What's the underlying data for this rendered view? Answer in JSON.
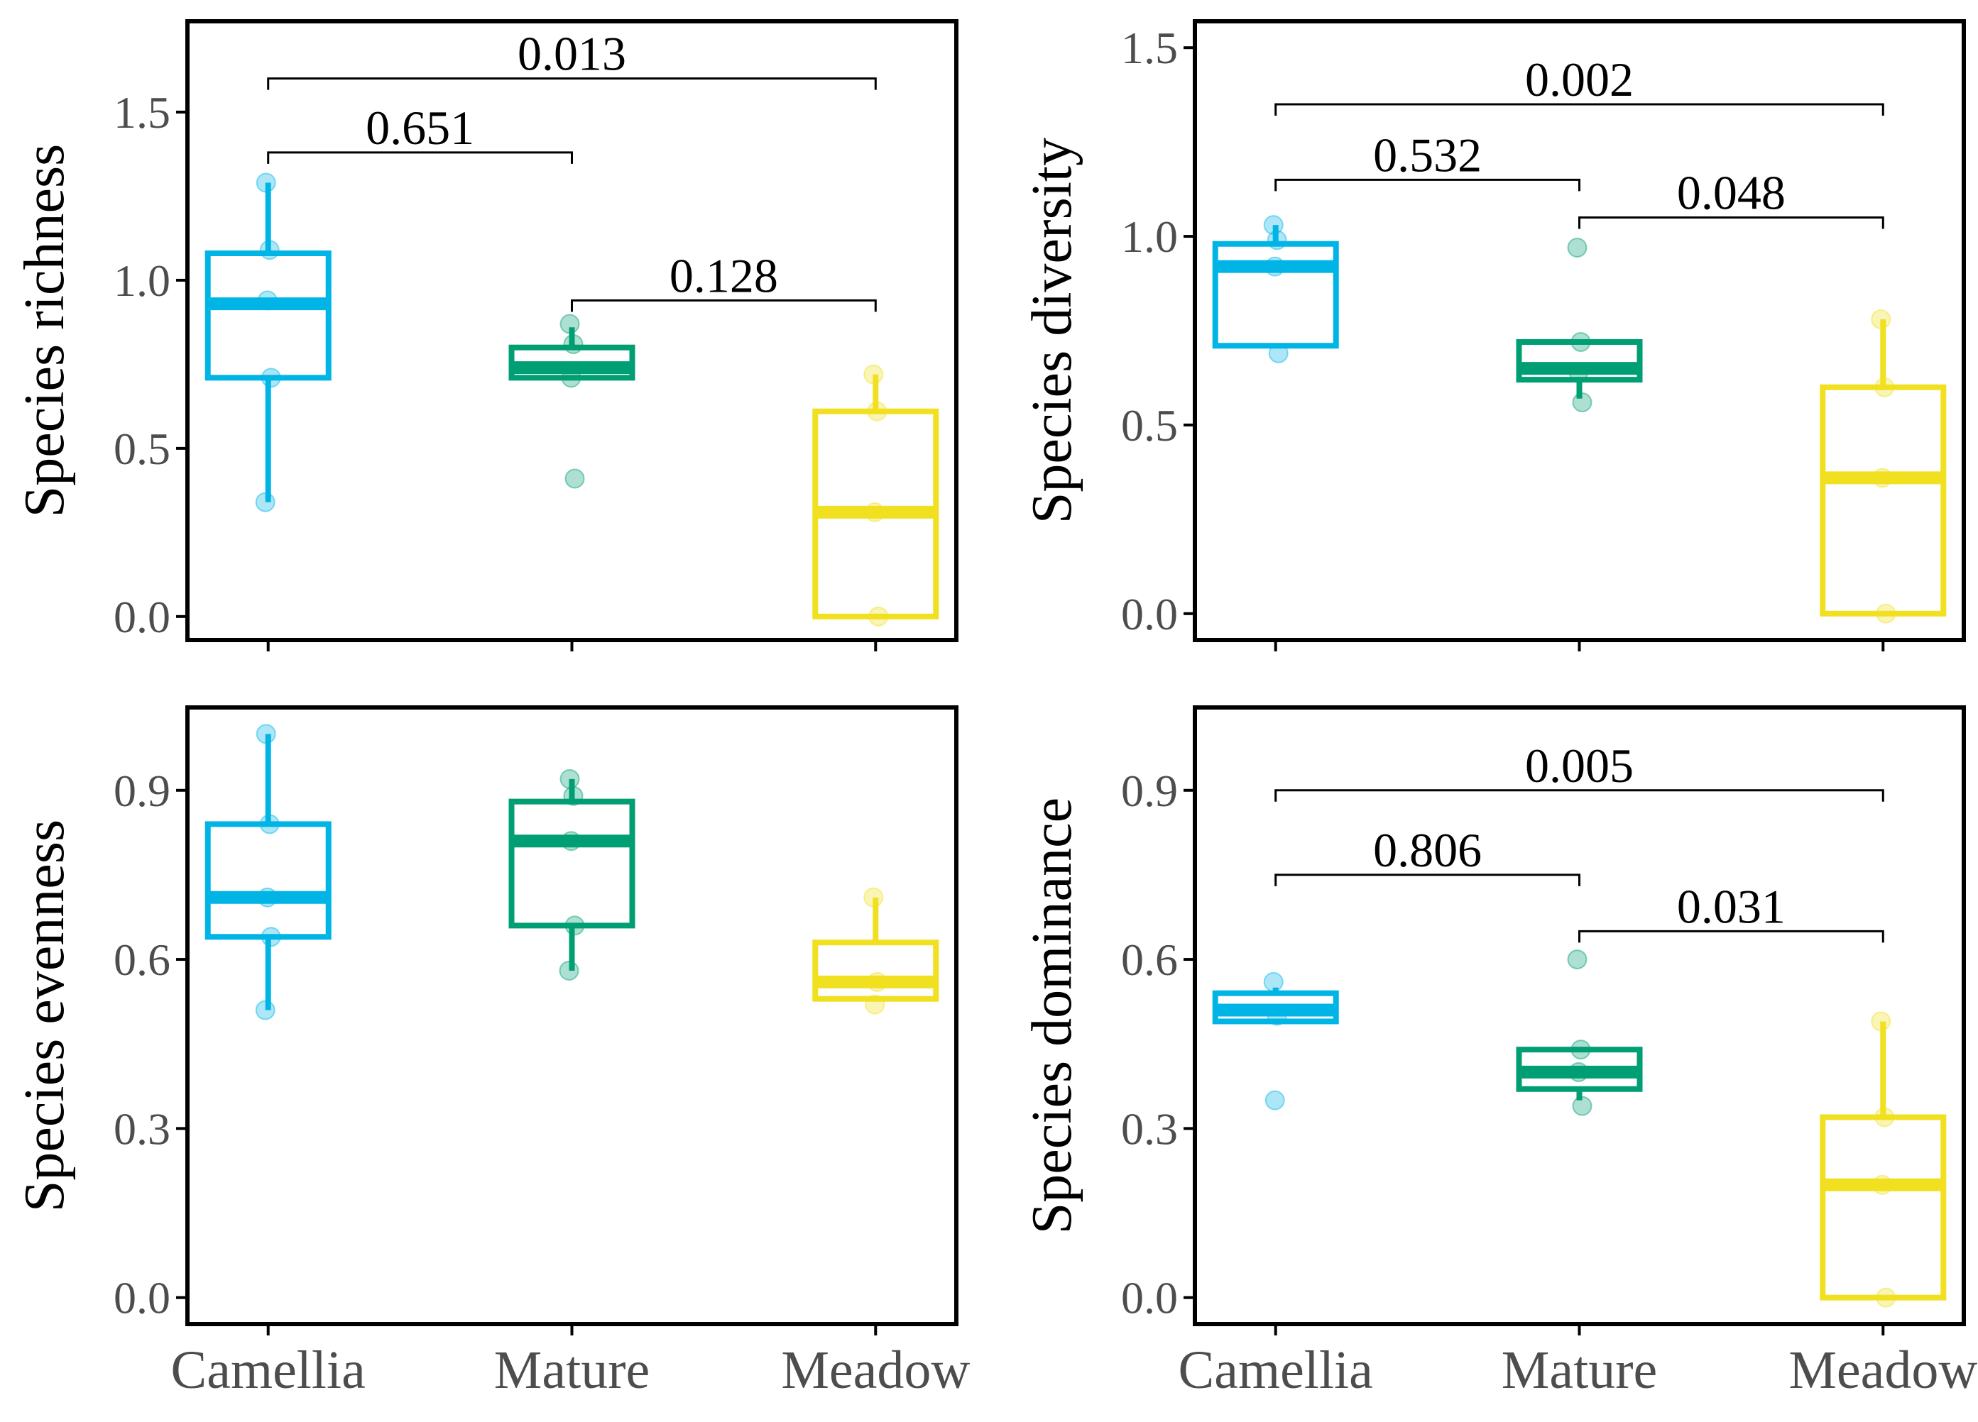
{
  "colors": {
    "Camellia": "#00b4e6",
    "Mature": "#009e73",
    "Meadow": "#f0e020",
    "axis": "#000000",
    "tick_text": "#4d4d4d"
  },
  "chart_data": [
    {
      "type": "box",
      "ylabel": "Species richness",
      "categories": [
        "Camellia",
        "Mature",
        "Meadow"
      ],
      "ylim": [
        -0.07,
        1.77
      ],
      "yticks": [
        0.0,
        0.5,
        1.0,
        1.5
      ],
      "ytick_labels": [
        "0.0",
        "0.5",
        "1.0",
        "1.5"
      ],
      "show_xtick_labels": false,
      "boxes": [
        {
          "group": "Camellia",
          "whisker_low": 0.34,
          "q1": 0.71,
          "median": 0.93,
          "q3": 1.08,
          "whisker_high": 1.29
        },
        {
          "group": "Mature",
          "whisker_low": 0.71,
          "q1": 0.71,
          "median": 0.74,
          "q3": 0.8,
          "whisker_high": 0.86
        },
        {
          "group": "Meadow",
          "whisker_low": 0.0,
          "q1": 0.0,
          "median": 0.31,
          "q3": 0.61,
          "whisker_high": 0.72
        }
      ],
      "points": [
        {
          "group": "Camellia",
          "values": [
            1.29,
            1.09,
            0.94,
            0.71,
            0.34
          ]
        },
        {
          "group": "Mature",
          "values": [
            0.87,
            0.81,
            0.71,
            0.41
          ]
        },
        {
          "group": "Meadow",
          "values": [
            0.72,
            0.61,
            0.31,
            0.0
          ]
        }
      ],
      "comparisons": [
        {
          "from": "Camellia",
          "to": "Meadow",
          "label": "0.013",
          "y": 1.6
        },
        {
          "from": "Camellia",
          "to": "Mature",
          "label": "0.651",
          "y": 1.38
        },
        {
          "from": "Mature",
          "to": "Meadow",
          "label": "0.128",
          "y": 0.94
        }
      ]
    },
    {
      "type": "box",
      "ylabel": "Species diversity",
      "categories": [
        "Camellia",
        "Mature",
        "Meadow"
      ],
      "ylim": [
        -0.07,
        1.57
      ],
      "yticks": [
        0.0,
        0.5,
        1.0,
        1.5
      ],
      "ytick_labels": [
        "0.0",
        "0.5",
        "1.0",
        "1.5"
      ],
      "show_xtick_labels": false,
      "boxes": [
        {
          "group": "Camellia",
          "whisker_low": 0.71,
          "q1": 0.71,
          "median": 0.92,
          "q3": 0.98,
          "whisker_high": 1.03
        },
        {
          "group": "Mature",
          "whisker_low": 0.57,
          "q1": 0.62,
          "median": 0.65,
          "q3": 0.72,
          "whisker_high": 0.72
        },
        {
          "group": "Meadow",
          "whisker_low": 0.0,
          "q1": 0.0,
          "median": 0.36,
          "q3": 0.6,
          "whisker_high": 0.78
        }
      ],
      "points": [
        {
          "group": "Camellia",
          "values": [
            1.03,
            0.99,
            0.92,
            0.69
          ]
        },
        {
          "group": "Mature",
          "values": [
            0.97,
            0.72,
            0.64,
            0.56
          ]
        },
        {
          "group": "Meadow",
          "values": [
            0.78,
            0.6,
            0.36,
            0.0
          ]
        }
      ],
      "comparisons": [
        {
          "from": "Camellia",
          "to": "Meadow",
          "label": "0.002",
          "y": 1.35
        },
        {
          "from": "Camellia",
          "to": "Mature",
          "label": "0.532",
          "y": 1.15
        },
        {
          "from": "Mature",
          "to": "Meadow",
          "label": "0.048",
          "y": 1.05
        }
      ]
    },
    {
      "type": "box",
      "ylabel": "Species evenness",
      "categories": [
        "Camellia",
        "Mature",
        "Meadow"
      ],
      "ylim": [
        -0.047,
        1.047
      ],
      "yticks": [
        0.0,
        0.3,
        0.6,
        0.9
      ],
      "ytick_labels": [
        "0.0",
        "0.3",
        "0.6",
        "0.9"
      ],
      "show_xtick_labels": true,
      "boxes": [
        {
          "group": "Camellia",
          "whisker_low": 0.51,
          "q1": 0.64,
          "median": 0.71,
          "q3": 0.84,
          "whisker_high": 1.0
        },
        {
          "group": "Mature",
          "whisker_low": 0.58,
          "q1": 0.66,
          "median": 0.81,
          "q3": 0.88,
          "whisker_high": 0.92
        },
        {
          "group": "Meadow",
          "whisker_low": 0.53,
          "q1": 0.53,
          "median": 0.56,
          "q3": 0.63,
          "whisker_high": 0.71
        }
      ],
      "points": [
        {
          "group": "Camellia",
          "values": [
            1.0,
            0.84,
            0.71,
            0.64,
            0.51
          ]
        },
        {
          "group": "Mature",
          "values": [
            0.92,
            0.89,
            0.81,
            0.66,
            0.58
          ]
        },
        {
          "group": "Meadow",
          "values": [
            0.71,
            0.56,
            0.52
          ]
        }
      ],
      "comparisons": []
    },
    {
      "type": "box",
      "ylabel": "Species dominance",
      "categories": [
        "Camellia",
        "Mature",
        "Meadow"
      ],
      "ylim": [
        -0.047,
        1.047
      ],
      "yticks": [
        0.0,
        0.3,
        0.6,
        0.9
      ],
      "ytick_labels": [
        "0.0",
        "0.3",
        "0.6",
        "0.9"
      ],
      "show_xtick_labels": true,
      "boxes": [
        {
          "group": "Camellia",
          "whisker_low": 0.49,
          "q1": 0.49,
          "median": 0.51,
          "q3": 0.54,
          "whisker_high": 0.55
        },
        {
          "group": "Mature",
          "whisker_low": 0.35,
          "q1": 0.37,
          "median": 0.4,
          "q3": 0.44,
          "whisker_high": 0.44
        },
        {
          "group": "Meadow",
          "whisker_low": 0.0,
          "q1": 0.0,
          "median": 0.2,
          "q3": 0.32,
          "whisker_high": 0.49
        }
      ],
      "points": [
        {
          "group": "Camellia",
          "values": [
            0.56,
            0.5,
            0.35
          ]
        },
        {
          "group": "Mature",
          "values": [
            0.6,
            0.44,
            0.4,
            0.34
          ]
        },
        {
          "group": "Meadow",
          "values": [
            0.49,
            0.32,
            0.2,
            0.0
          ]
        }
      ],
      "comparisons": [
        {
          "from": "Camellia",
          "to": "Meadow",
          "label": "0.005",
          "y": 0.9
        },
        {
          "from": "Camellia",
          "to": "Mature",
          "label": "0.806",
          "y": 0.75
        },
        {
          "from": "Mature",
          "to": "Meadow",
          "label": "0.031",
          "y": 0.65
        }
      ]
    }
  ]
}
